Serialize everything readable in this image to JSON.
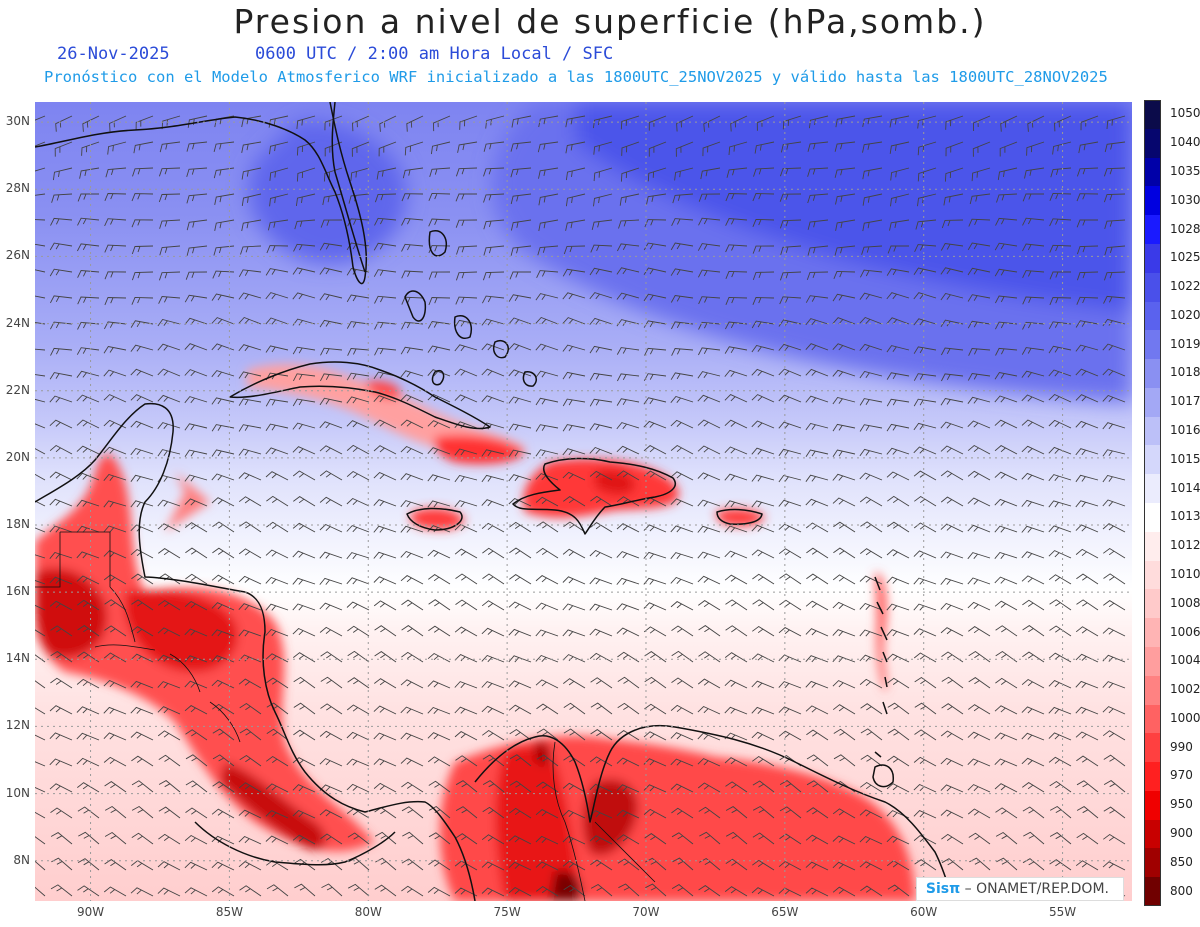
{
  "header": {
    "title": "Presion a nivel de superficie (hPa,somb.)",
    "date": "26-Nov-2025",
    "valid_time": "0600 UTC / 2:00 am Hora Local / SFC",
    "model_info": "Pronóstico con el Modelo Atmosferico WRF inicializado a las 1800UTC_25NOV2025 y válido hasta las  1800UTC_28NOV2025"
  },
  "map": {
    "lon_range": [
      -92,
      -52.5
    ],
    "lat_range": [
      6.8,
      30.6
    ],
    "lon_ticks": [
      {
        "value": -90,
        "label": "90W"
      },
      {
        "value": -85,
        "label": "85W"
      },
      {
        "value": -80,
        "label": "80W"
      },
      {
        "value": -75,
        "label": "75W"
      },
      {
        "value": -70,
        "label": "70W"
      },
      {
        "value": -65,
        "label": "65W"
      },
      {
        "value": -60,
        "label": "60W"
      },
      {
        "value": -55,
        "label": "55W"
      }
    ],
    "lat_ticks": [
      {
        "value": 8,
        "label": "8N"
      },
      {
        "value": 10,
        "label": "10N"
      },
      {
        "value": 12,
        "label": "12N"
      },
      {
        "value": 14,
        "label": "14N"
      },
      {
        "value": 16,
        "label": "16N"
      },
      {
        "value": 18,
        "label": "18N"
      },
      {
        "value": 20,
        "label": "20N"
      },
      {
        "value": 22,
        "label": "22N"
      },
      {
        "value": 24,
        "label": "24N"
      },
      {
        "value": 26,
        "label": "26N"
      },
      {
        "value": 28,
        "label": "28N"
      },
      {
        "value": 30,
        "label": "30N"
      }
    ]
  },
  "legend": {
    "levels": [
      {
        "label": "1050",
        "color": "#0b0b4a"
      },
      {
        "label": "1040",
        "color": "#06066e"
      },
      {
        "label": "1035",
        "color": "#0000a8"
      },
      {
        "label": "1030",
        "color": "#0000e0"
      },
      {
        "label": "1028",
        "color": "#1a1aff"
      },
      {
        "label": "1025",
        "color": "#3a3ae8"
      },
      {
        "label": "1022",
        "color": "#4a50ea"
      },
      {
        "label": "1020",
        "color": "#5a62ee"
      },
      {
        "label": "1019",
        "color": "#7178f0"
      },
      {
        "label": "1018",
        "color": "#8a90f2"
      },
      {
        "label": "1017",
        "color": "#a3a8f5"
      },
      {
        "label": "1016",
        "color": "#bcc0f8"
      },
      {
        "label": "1015",
        "color": "#d4d7fb"
      },
      {
        "label": "1014",
        "color": "#ebecfd"
      },
      {
        "label": "1013",
        "color": "#ffffff"
      },
      {
        "label": "1012",
        "color": "#ffeded"
      },
      {
        "label": "1010",
        "color": "#ffdcdc"
      },
      {
        "label": "1008",
        "color": "#ffcaca"
      },
      {
        "label": "1006",
        "color": "#ffb4b4"
      },
      {
        "label": "1004",
        "color": "#ff9e9e"
      },
      {
        "label": "1002",
        "color": "#ff8282"
      },
      {
        "label": "1000",
        "color": "#ff6262"
      },
      {
        "label": "990",
        "color": "#ff4040"
      },
      {
        "label": "970",
        "color": "#ff2020"
      },
      {
        "label": "950",
        "color": "#f00000"
      },
      {
        "label": "900",
        "color": "#c80000"
      },
      {
        "label": "850",
        "color": "#a00000"
      },
      {
        "label": "800",
        "color": "#700000"
      }
    ]
  },
  "credit": {
    "logo_text": "Sisπ",
    "text": "– ONAMET/REP.DOM."
  }
}
